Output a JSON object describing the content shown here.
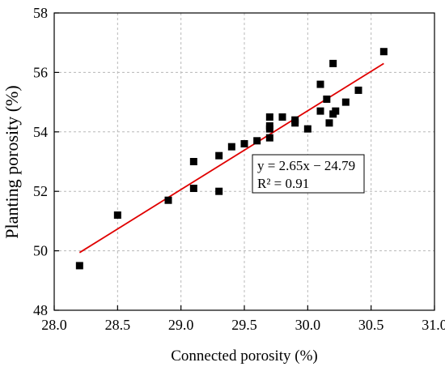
{
  "chart_data": {
    "type": "scatter",
    "xlabel": "Connected porosity (%)",
    "ylabel": "Planting porosity (%)",
    "xlim": [
      28.0,
      31.0
    ],
    "ylim": [
      48,
      58
    ],
    "x_ticks": [
      "28.0",
      "28.5",
      "29.0",
      "29.5",
      "30.0",
      "30.5",
      "31.0"
    ],
    "y_ticks": [
      "48",
      "50",
      "52",
      "54",
      "56",
      "58"
    ],
    "grid": true,
    "series": [
      {
        "marker": "square",
        "color": "#000000",
        "points": [
          [
            28.2,
            49.5
          ],
          [
            28.5,
            51.2
          ],
          [
            28.9,
            51.7
          ],
          [
            29.1,
            53.0
          ],
          [
            29.1,
            52.1
          ],
          [
            29.3,
            53.2
          ],
          [
            29.3,
            52.0
          ],
          [
            29.4,
            53.5
          ],
          [
            29.5,
            53.6
          ],
          [
            29.6,
            53.7
          ],
          [
            29.7,
            54.5
          ],
          [
            29.7,
            54.2
          ],
          [
            29.7,
            54.1
          ],
          [
            29.7,
            53.8
          ],
          [
            29.8,
            54.5
          ],
          [
            29.9,
            54.4
          ],
          [
            29.9,
            54.3
          ],
          [
            30.0,
            54.1
          ],
          [
            30.1,
            55.6
          ],
          [
            30.1,
            54.7
          ],
          [
            30.15,
            55.1
          ],
          [
            30.17,
            54.3
          ],
          [
            30.2,
            56.3
          ],
          [
            30.2,
            54.6
          ],
          [
            30.22,
            54.7
          ],
          [
            30.3,
            55.0
          ],
          [
            30.4,
            55.4
          ],
          [
            30.6,
            56.7
          ]
        ]
      }
    ],
    "fit_line": {
      "color": "#e00000",
      "slope": 2.65,
      "intercept": -24.79,
      "x_range": [
        28.2,
        30.6
      ]
    },
    "annotation": {
      "equation": "y = 2.65x − 24.79",
      "r_squared": "R² = 0.91"
    }
  }
}
